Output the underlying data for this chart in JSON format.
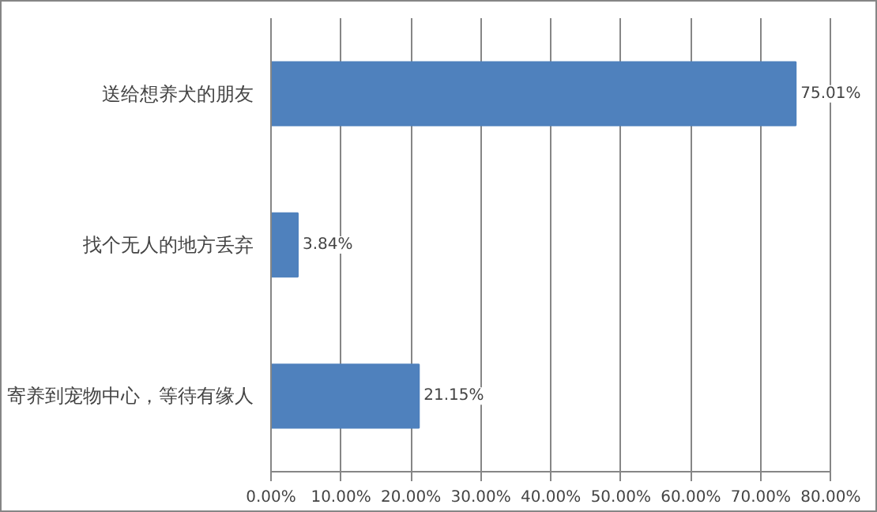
{
  "chart_data": {
    "type": "bar",
    "orientation": "horizontal",
    "categories": [
      "送给想养犬的朋友",
      "找个无人的地方丢弃",
      "寄养到宠物中心，等待有缘人"
    ],
    "values": [
      75.01,
      3.84,
      21.15
    ],
    "value_labels": [
      "75.01%",
      "3.84%",
      "21.15%"
    ],
    "color": "#4f81bd",
    "xlim": [
      0,
      80
    ],
    "xticks": [
      {
        "value": 0,
        "label": "0.00%"
      },
      {
        "value": 10,
        "label": "10.00%"
      },
      {
        "value": 20,
        "label": "20.00%"
      },
      {
        "value": 30,
        "label": "30.00%"
      },
      {
        "value": 40,
        "label": "40.00%"
      },
      {
        "value": 50,
        "label": "50.00%"
      },
      {
        "value": 60,
        "label": "60.00%"
      },
      {
        "value": 70,
        "label": "70.00%"
      },
      {
        "value": 80,
        "label": "80.00%"
      }
    ],
    "grid": "x"
  }
}
